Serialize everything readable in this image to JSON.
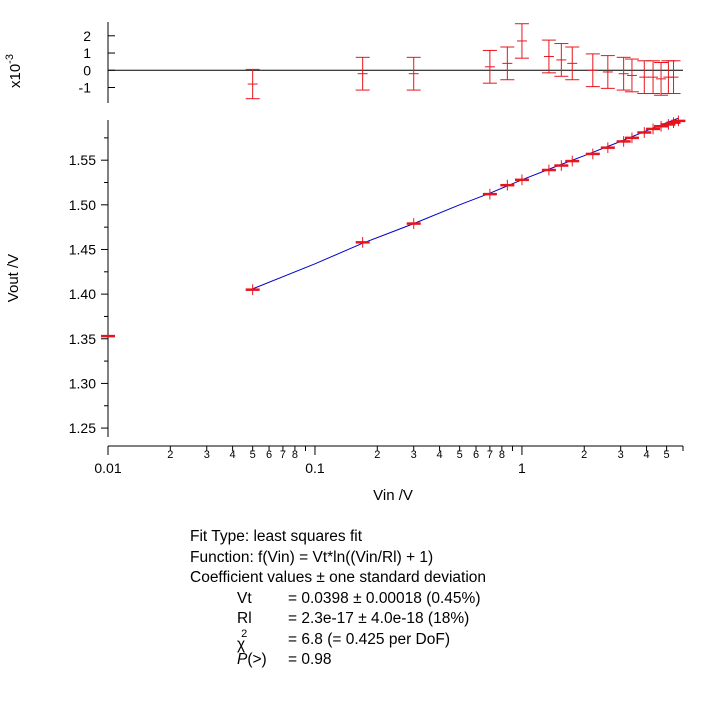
{
  "chart_data": [
    {
      "type": "scatter",
      "panel": "residuals",
      "ylabel": "x10-3",
      "ylabel_base": "x10",
      "ylabel_exp": "-3",
      "xscale": "log",
      "xlim": [
        0.01,
        6.0
      ],
      "ylim": [
        -1.9,
        2.8
      ],
      "yticks": [
        2,
        1,
        0,
        -1
      ],
      "ytick_labels": [
        "2",
        "1",
        "0",
        "-1"
      ],
      "zero_line": true,
      "x": [
        0.05,
        0.17,
        0.3,
        0.7,
        0.85,
        1.0,
        1.35,
        1.55,
        1.75,
        2.2,
        2.6,
        3.1,
        3.4,
        3.9,
        4.3,
        4.7,
        5.1,
        5.4
      ],
      "values": [
        -0.8,
        -0.2,
        -0.2,
        0.2,
        0.4,
        1.7,
        0.8,
        0.6,
        0.4,
        0.0,
        -0.1,
        -0.2,
        -0.3,
        -0.4,
        -0.4,
        -0.5,
        -0.4,
        -0.4
      ],
      "yerr": [
        0.85,
        0.95,
        0.95,
        0.95,
        0.95,
        1.0,
        0.95,
        0.95,
        0.95,
        0.95,
        0.95,
        0.95,
        0.95,
        0.95,
        0.95,
        0.95,
        0.95,
        0.95
      ],
      "grid": false,
      "color": "#e8141c"
    },
    {
      "type": "scatter",
      "panel": "main",
      "xlabel": "Vin /V",
      "ylabel": "Vout /V",
      "xscale": "log",
      "xlim": [
        0.01,
        6.0
      ],
      "ylim": [
        1.24,
        1.595
      ],
      "xticks_major": [
        0.01,
        0.1,
        1
      ],
      "xtick_labels": [
        "0.01",
        "0.1",
        "1"
      ],
      "minor_labels": [
        "2",
        "3",
        "4",
        "5",
        "6",
        "7",
        "8",
        "2",
        "3",
        "4",
        "5",
        "6",
        "7",
        "8",
        "2",
        "3",
        "4",
        "5"
      ],
      "yticks": [
        1.25,
        1.3,
        1.35,
        1.4,
        1.45,
        1.5,
        1.55
      ],
      "ytick_labels": [
        "1.25",
        "1.30",
        "1.35",
        "1.40",
        "1.45",
        "1.50",
        "1.55"
      ],
      "x": [
        0.01,
        0.05,
        0.17,
        0.3,
        0.7,
        0.85,
        1.0,
        1.35,
        1.55,
        1.75,
        2.2,
        2.6,
        3.1,
        3.4,
        3.9,
        4.3,
        4.7,
        5.1,
        5.4,
        5.7
      ],
      "values": [
        1.353,
        1.405,
        1.458,
        1.479,
        1.512,
        1.522,
        1.528,
        1.539,
        1.544,
        1.549,
        1.557,
        1.564,
        1.571,
        1.575,
        1.581,
        1.585,
        1.588,
        1.59,
        1.592,
        1.594
      ],
      "yerr": [
        0.0,
        0.006,
        0.006,
        0.006,
        0.006,
        0.006,
        0.006,
        0.006,
        0.006,
        0.006,
        0.006,
        0.006,
        0.006,
        0.006,
        0.006,
        0.006,
        0.006,
        0.006,
        0.006,
        0.006
      ],
      "fit_curve": {
        "x": [
          0.05,
          0.1,
          0.17,
          0.3,
          0.5,
          0.7,
          1.0,
          1.5,
          2.0,
          3.0,
          4.0,
          5.0,
          5.7
        ],
        "values": [
          1.406,
          1.434,
          1.457,
          1.479,
          1.5,
          1.513,
          1.528,
          1.544,
          1.555,
          1.571,
          1.583,
          1.592,
          1.597
        ],
        "color": "#0000cc"
      },
      "grid": false,
      "color": "#e8141c"
    }
  ],
  "fit": {
    "line1": "Fit Type: least squares fit",
    "line2": "Function: f(Vin) = Vt*ln((Vin/Rl) + 1)",
    "line3": "Coefficient values ± one standard deviation",
    "coefficients": [
      {
        "name": "Vt",
        "value": "= 0.0398 ± 0.00018  (0.45%)"
      },
      {
        "name": "Rl",
        "value": "= 2.3e-17 ± 4.0e-18  (18%)"
      }
    ],
    "chi_symbol": "χ",
    "chi_exp": "2",
    "chi_value": "= 6.8 (= 0.425 per DoF)",
    "p_label": "P",
    "p_suffix": "(>)",
    "p_value": "= 0.98"
  }
}
